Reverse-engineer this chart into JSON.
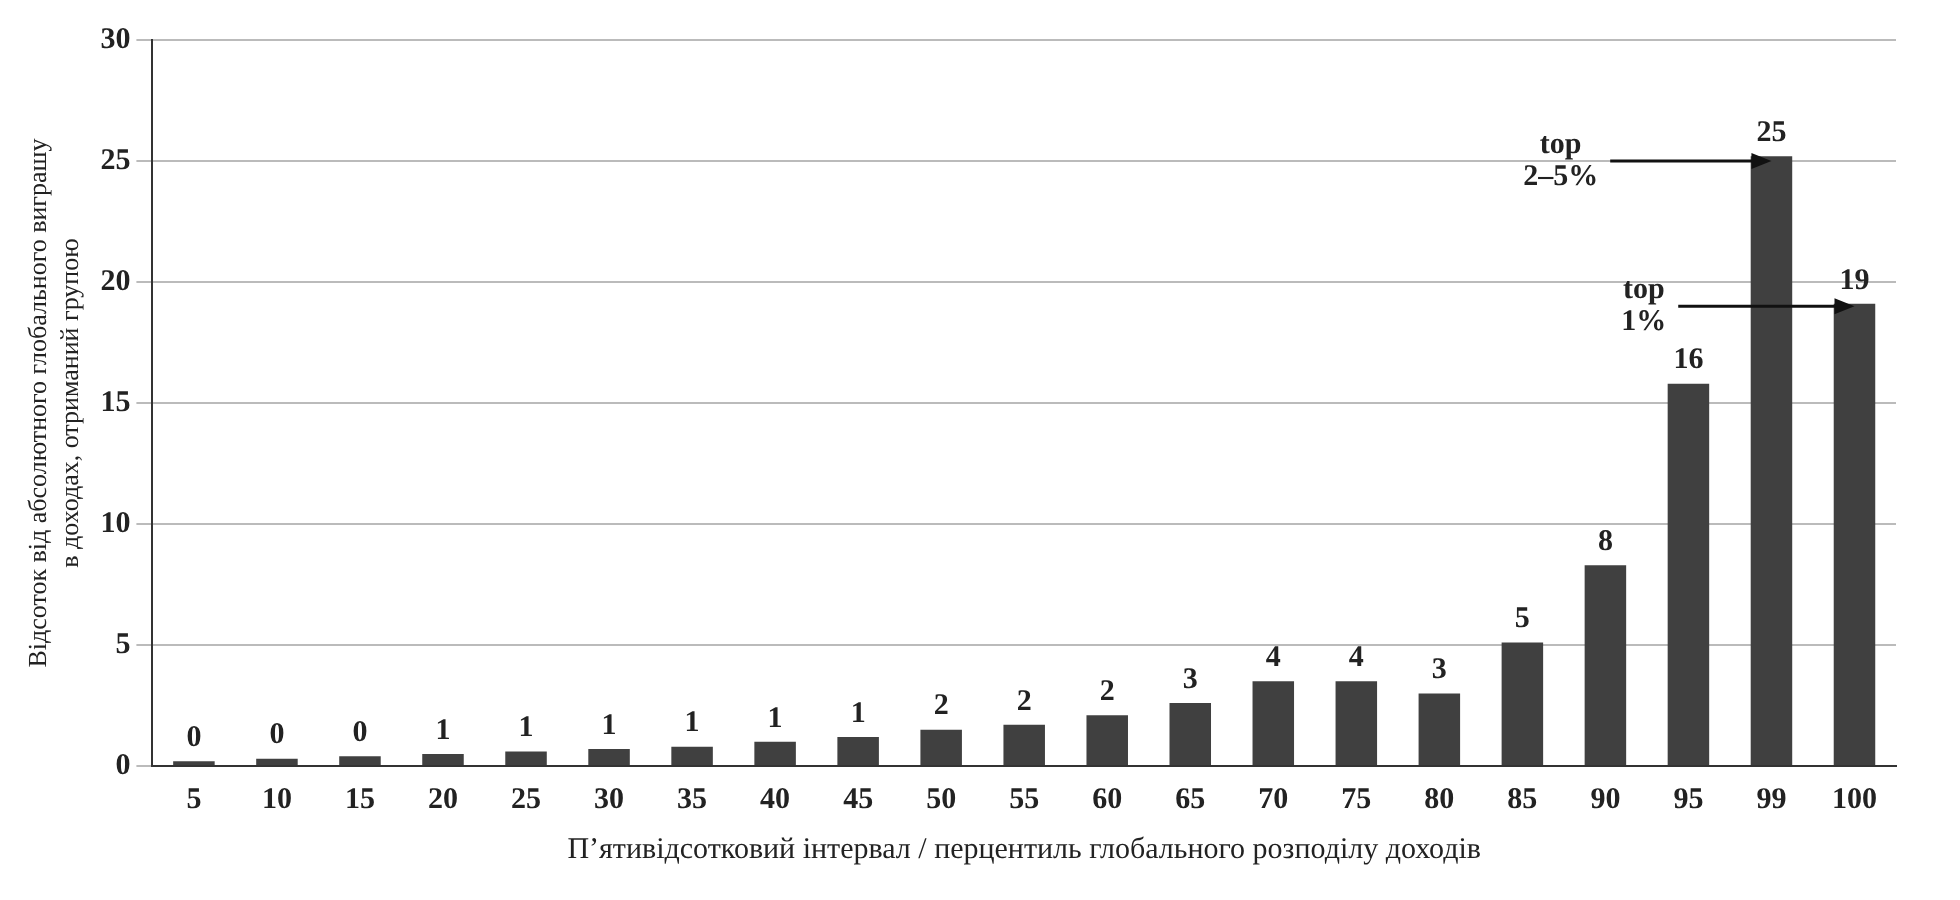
{
  "chart_data": {
    "type": "bar",
    "xlabel": "П’ятивідсотковий інтервал / перцентиль глобального розподілу доходів",
    "ylabel": "Відсоток від абсолютного глобального виграшу\nв доходах, отриманий групою",
    "categories": [
      "5",
      "10",
      "15",
      "20",
      "25",
      "30",
      "35",
      "40",
      "45",
      "50",
      "55",
      "60",
      "65",
      "70",
      "75",
      "80",
      "85",
      "90",
      "95",
      "99",
      "100"
    ],
    "values": [
      0.2,
      0.3,
      0.4,
      0.5,
      0.6,
      0.7,
      0.8,
      1.0,
      1.2,
      1.5,
      1.7,
      2.1,
      2.6,
      3.5,
      3.5,
      3.0,
      5.1,
      8.3,
      15.8,
      25.2,
      19.1
    ],
    "value_labels": [
      "0",
      "0",
      "0",
      "1",
      "1",
      "1",
      "1",
      "1",
      "1",
      "2",
      "2",
      "2",
      "3",
      "4",
      "4",
      "3",
      "5",
      "8",
      "16",
      "25",
      "19"
    ],
    "color": "#404040",
    "ylim": [
      0,
      30
    ],
    "yticks": [
      0,
      5,
      10,
      15,
      20,
      25,
      30
    ],
    "grid": "y",
    "annotations": [
      {
        "text": "top\n2–5%",
        "x": "99",
        "y": 25
      },
      {
        "text": "top\n1%",
        "x": "100",
        "y": 19
      }
    ]
  }
}
